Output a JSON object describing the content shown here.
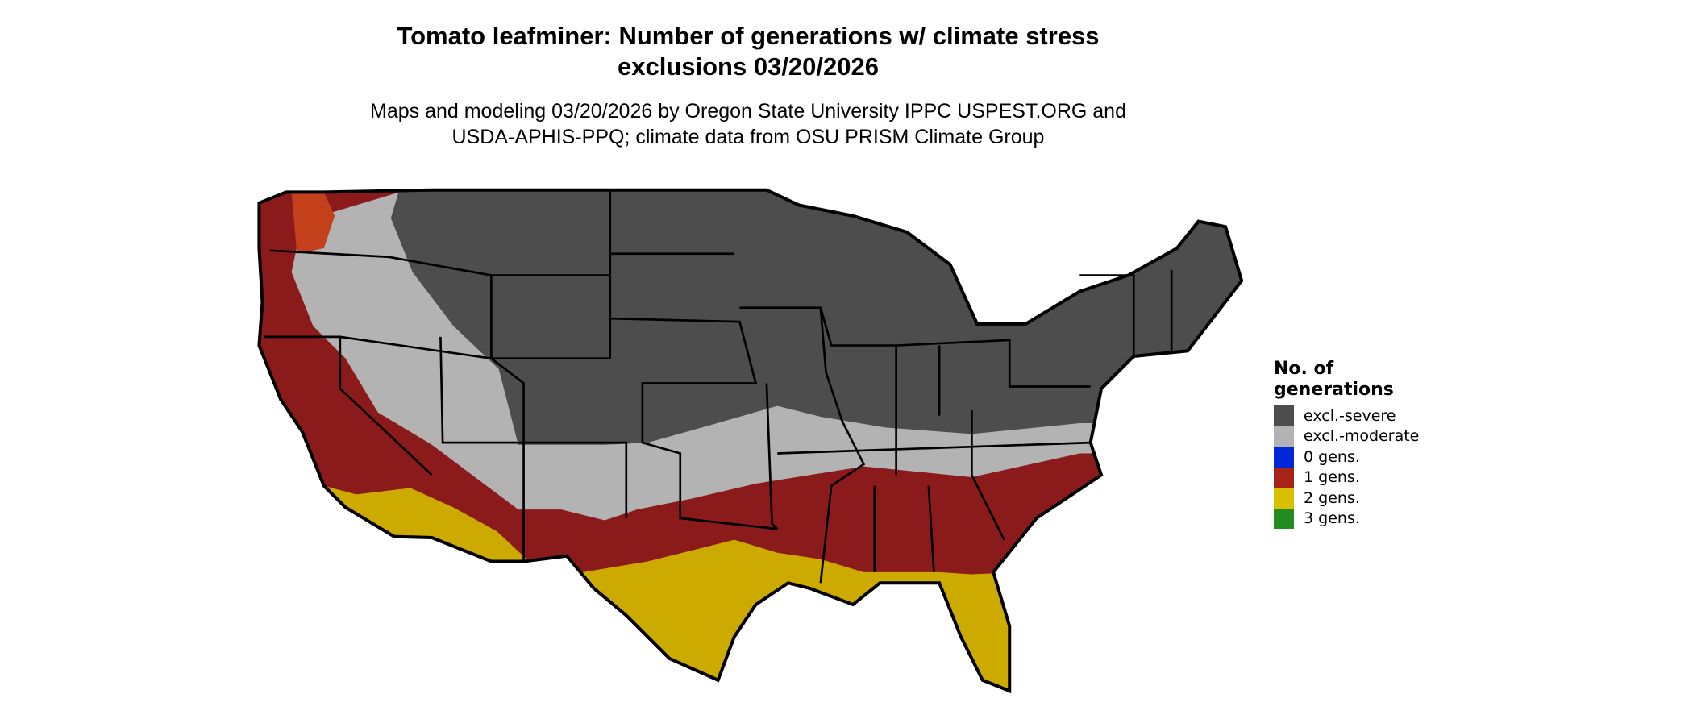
{
  "title_line1": "Tomato leafminer: Number of generations w/ climate stress",
  "title_line2": "exclusions 03/20/2026",
  "subtitle_line1": "Maps and modeling 03/20/2026 by Oregon State University IPPC USPEST.ORG and",
  "subtitle_line2": "USDA-APHIS-PPQ; climate data from OSU PRISM Climate Group",
  "legend": {
    "title_line1": "No. of",
    "title_line2": "generations",
    "items": [
      {
        "label": "excl.-severe",
        "color": "#4d4d4d"
      },
      {
        "label": "excl.-moderate",
        "color": "#b3b3b3"
      },
      {
        "label": "0 gens.",
        "color": "#0028d8"
      },
      {
        "label": "1 gens.",
        "color": "#a82418"
      },
      {
        "label": "2 gens.",
        "color": "#d8c000"
      },
      {
        "label": "3 gens.",
        "color": "#228b22"
      }
    ]
  }
}
